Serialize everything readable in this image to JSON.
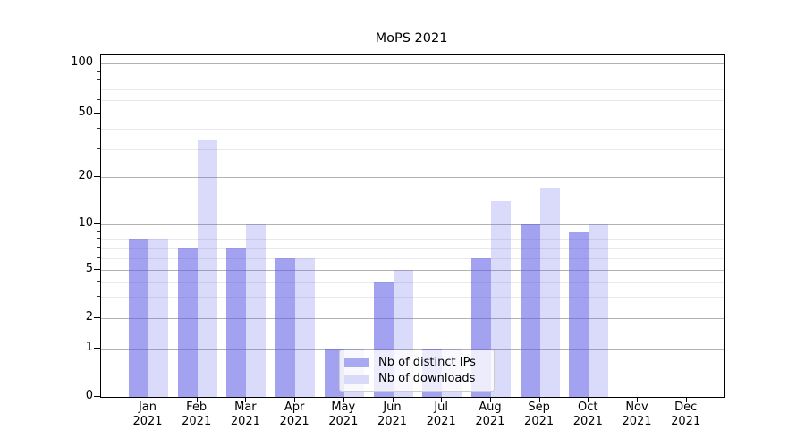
{
  "title": "MoPS 2021",
  "chart_data": {
    "type": "bar",
    "title": "MoPS 2021",
    "grouping": "grouped-pairs",
    "categories": [
      "Jan 2021",
      "Feb 2021",
      "Mar 2021",
      "Apr 2021",
      "May 2021",
      "Jun 2021",
      "Jul 2021",
      "Aug 2021",
      "Sep 2021",
      "Oct 2021",
      "Nov 2021",
      "Dec 2021"
    ],
    "x_months": [
      "Jan",
      "Feb",
      "Mar",
      "Apr",
      "May",
      "Jun",
      "Jul",
      "Aug",
      "Sep",
      "Oct",
      "Nov",
      "Dec"
    ],
    "x_year": "2021",
    "series": [
      {
        "name": "Nb of distinct IPs",
        "fill": "rgba(85,85,230,0.55)",
        "swatch_color": "#a9a9f1",
        "values": [
          8,
          7,
          7,
          6,
          1,
          4,
          1,
          6,
          10,
          9,
          0,
          0
        ]
      },
      {
        "name": "Nb of downloads",
        "fill": "rgba(85,85,230,0.22)",
        "swatch_color": "#d9d9f8",
        "values": [
          8,
          34,
          10,
          6,
          1,
          5,
          1,
          14,
          17,
          10,
          0,
          0
        ]
      }
    ],
    "xlabel": "",
    "ylabel": "",
    "yaxis": {
      "scale": "symlog-like",
      "range": [
        0,
        100
      ],
      "major_ticks": [
        0,
        1,
        2,
        5,
        10,
        20,
        50,
        100
      ],
      "minor_ticks": [
        3,
        4,
        6,
        7,
        8,
        9,
        30,
        40,
        60,
        70,
        80,
        90
      ]
    },
    "grid": "on",
    "grid_colors": {
      "major": "#b3b3b3",
      "minor": "#e9e9e9"
    },
    "legend_position": "lower-center-inside"
  }
}
